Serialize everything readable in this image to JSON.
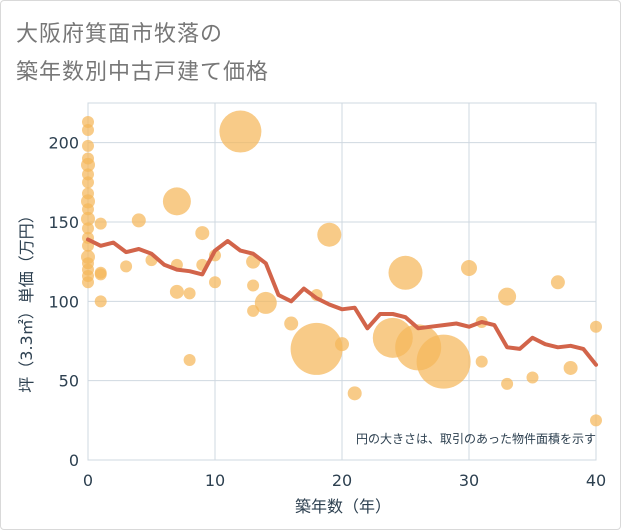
{
  "title_line1": "大阪府箕面市牧落の",
  "title_line2": "築年数別中古戸建て価格",
  "chart_data": {
    "type": "scatter",
    "xlabel": "築年数（年）",
    "ylabel": "坪（3.3㎡）単価（万円）",
    "xlim": [
      0,
      40
    ],
    "ylim": [
      0,
      225
    ],
    "x_ticks": [
      0,
      10,
      20,
      30,
      40
    ],
    "y_ticks": [
      0,
      50,
      100,
      150,
      200
    ],
    "grid": true,
    "annotation": "円の大きさは、取引のあった物件面積を示す",
    "colors": {
      "bubble": "#f5b75a",
      "line": "#d2644a",
      "grid": "#cfd8e0"
    },
    "points": [
      {
        "x": 0,
        "y": 213,
        "r": 6
      },
      {
        "x": 0,
        "y": 208,
        "r": 6
      },
      {
        "x": 0,
        "y": 198,
        "r": 6
      },
      {
        "x": 0,
        "y": 190,
        "r": 6
      },
      {
        "x": 0,
        "y": 186,
        "r": 7
      },
      {
        "x": 0,
        "y": 180,
        "r": 6
      },
      {
        "x": 0,
        "y": 175,
        "r": 6
      },
      {
        "x": 0,
        "y": 168,
        "r": 6
      },
      {
        "x": 0,
        "y": 163,
        "r": 7
      },
      {
        "x": 0,
        "y": 158,
        "r": 6
      },
      {
        "x": 0,
        "y": 152,
        "r": 7
      },
      {
        "x": 0,
        "y": 146,
        "r": 6
      },
      {
        "x": 0,
        "y": 140,
        "r": 6
      },
      {
        "x": 0,
        "y": 135,
        "r": 6
      },
      {
        "x": 0,
        "y": 128,
        "r": 7
      },
      {
        "x": 0,
        "y": 124,
        "r": 6
      },
      {
        "x": 0,
        "y": 120,
        "r": 6
      },
      {
        "x": 0,
        "y": 116,
        "r": 6
      },
      {
        "x": 0,
        "y": 112,
        "r": 6
      },
      {
        "x": 1,
        "y": 149,
        "r": 6
      },
      {
        "x": 1,
        "y": 118,
        "r": 6
      },
      {
        "x": 1,
        "y": 117,
        "r": 6
      },
      {
        "x": 1,
        "y": 100,
        "r": 6
      },
      {
        "x": 3,
        "y": 122,
        "r": 6
      },
      {
        "x": 4,
        "y": 151,
        "r": 7
      },
      {
        "x": 5,
        "y": 126,
        "r": 6
      },
      {
        "x": 7,
        "y": 163,
        "r": 14
      },
      {
        "x": 7,
        "y": 123,
        "r": 6
      },
      {
        "x": 7,
        "y": 106,
        "r": 7
      },
      {
        "x": 8,
        "y": 105,
        "r": 6
      },
      {
        "x": 8,
        "y": 63,
        "r": 6
      },
      {
        "x": 9,
        "y": 143,
        "r": 7
      },
      {
        "x": 9,
        "y": 123,
        "r": 6
      },
      {
        "x": 10,
        "y": 129,
        "r": 6
      },
      {
        "x": 10,
        "y": 112,
        "r": 6
      },
      {
        "x": 12,
        "y": 207,
        "r": 21
      },
      {
        "x": 13,
        "y": 125,
        "r": 7
      },
      {
        "x": 13,
        "y": 110,
        "r": 6
      },
      {
        "x": 13,
        "y": 94,
        "r": 6
      },
      {
        "x": 14,
        "y": 99,
        "r": 11
      },
      {
        "x": 16,
        "y": 86,
        "r": 7
      },
      {
        "x": 18,
        "y": 70,
        "r": 26
      },
      {
        "x": 18,
        "y": 104,
        "r": 6
      },
      {
        "x": 19,
        "y": 142,
        "r": 12
      },
      {
        "x": 20,
        "y": 73,
        "r": 7
      },
      {
        "x": 21,
        "y": 42,
        "r": 7
      },
      {
        "x": 24,
        "y": 77,
        "r": 20
      },
      {
        "x": 25,
        "y": 118,
        "r": 17
      },
      {
        "x": 26,
        "y": 71,
        "r": 23
      },
      {
        "x": 28,
        "y": 62,
        "r": 27
      },
      {
        "x": 30,
        "y": 121,
        "r": 8
      },
      {
        "x": 31,
        "y": 87,
        "r": 6
      },
      {
        "x": 31,
        "y": 62,
        "r": 6
      },
      {
        "x": 33,
        "y": 103,
        "r": 9
      },
      {
        "x": 33,
        "y": 48,
        "r": 6
      },
      {
        "x": 35,
        "y": 52,
        "r": 6
      },
      {
        "x": 37,
        "y": 112,
        "r": 7
      },
      {
        "x": 38,
        "y": 58,
        "r": 7
      },
      {
        "x": 40,
        "y": 84,
        "r": 6
      },
      {
        "x": 40,
        "y": 25,
        "r": 6
      }
    ],
    "trend": {
      "x": [
        0,
        1,
        2,
        3,
        4,
        5,
        6,
        7,
        8,
        9,
        10,
        11,
        12,
        13,
        14,
        15,
        16,
        17,
        18,
        19,
        20,
        21,
        22,
        23,
        24,
        25,
        26,
        27,
        28,
        29,
        30,
        31,
        32,
        33,
        34,
        35,
        36,
        37,
        38,
        39,
        40
      ],
      "y": [
        139,
        135,
        137,
        131,
        133,
        130,
        123,
        120,
        119,
        117,
        132,
        138,
        132,
        130,
        124,
        104,
        100,
        108,
        102,
        98,
        95,
        96,
        83,
        92,
        92,
        90,
        83,
        84,
        85,
        86,
        84,
        87,
        85,
        71,
        70,
        77,
        73,
        71,
        72,
        70,
        60
      ]
    }
  }
}
